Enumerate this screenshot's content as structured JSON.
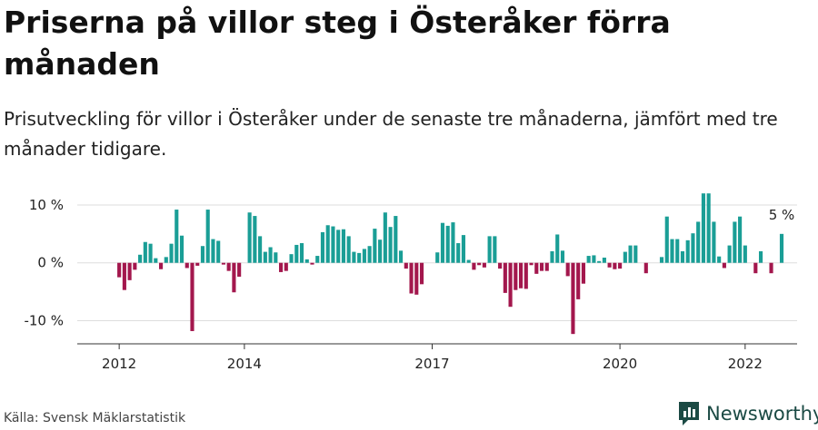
{
  "title": "Priserna på villor steg i Österåker förra månaden",
  "subtitle": "Prisutveckling för villor i Österåker under de senaste tre månaderna, jämfört med tre månader tidigare.",
  "source": "Källa: Svensk Mäklarstatistik",
  "brand": "Newsworthy",
  "colors": {
    "positive": "#1a9e96",
    "negative": "#a3174d",
    "grid": "#dddddd",
    "brand": "#1b4a44"
  },
  "chart_data": {
    "type": "bar",
    "xlabel": "",
    "ylabel": "",
    "ylim": [
      -14,
      12.5
    ],
    "x_range_years": [
      2011.33,
      2022.83
    ],
    "y_ticks": [
      {
        "value": 10,
        "label": "10 %"
      },
      {
        "value": 0,
        "label": "0 %"
      },
      {
        "value": -10,
        "label": "-10 %"
      }
    ],
    "x_ticks": [
      {
        "year": 2012,
        "label": "2012"
      },
      {
        "year": 2014,
        "label": "2014"
      },
      {
        "year": 2017,
        "label": "2017"
      },
      {
        "year": 2020,
        "label": "2020"
      },
      {
        "year": 2022,
        "label": "2022"
      }
    ],
    "start_year": 2012,
    "months_per_year": 12,
    "values": [
      -2.5,
      -4.7,
      -3.0,
      -1.2,
      1.4,
      3.6,
      3.3,
      0.8,
      -1.1,
      1.0,
      3.3,
      9.2,
      4.7,
      -0.9,
      -11.8,
      -0.5,
      2.9,
      9.2,
      4.1,
      3.8,
      -0.3,
      -1.4,
      -5.1,
      -2.4,
      0,
      8.7,
      8.1,
      4.6,
      1.9,
      2.7,
      1.8,
      -1.6,
      -1.4,
      1.5,
      3.1,
      3.4,
      0.6,
      -0.3,
      1.2,
      5.3,
      6.5,
      6.3,
      5.7,
      5.8,
      4.6,
      1.9,
      1.7,
      2.4,
      2.9,
      5.9,
      4.0,
      8.7,
      6.2,
      8.1,
      2.1,
      -1.0,
      -5.3,
      -5.5,
      -3.7,
      0,
      0,
      1.8,
      6.9,
      6.4,
      7.0,
      3.4,
      4.8,
      0.5,
      -1.2,
      -0.4,
      -0.8,
      4.6,
      4.6,
      -1.0,
      -5.2,
      -7.6,
      -4.7,
      -4.4,
      -4.5,
      -0.4,
      -1.9,
      -1.4,
      -1.4,
      2.0,
      4.9,
      2.1,
      -2.3,
      -12.3,
      -6.3,
      -3.6,
      1.2,
      1.3,
      0.3,
      0.9,
      -0.8,
      -1.1,
      -1.0,
      1.9,
      3.0,
      3.0,
      0,
      -1.8,
      0,
      0,
      1.0,
      8.0,
      4.1,
      4.1,
      2.0,
      3.9,
      5.1,
      7.1,
      12.0,
      12.0,
      7.1,
      1.1,
      -0.9,
      3.0,
      7.1,
      8.0,
      3.0,
      0,
      -1.8,
      2.0,
      0,
      -1.8,
      0,
      5.0
    ],
    "annotation": "5 %"
  }
}
